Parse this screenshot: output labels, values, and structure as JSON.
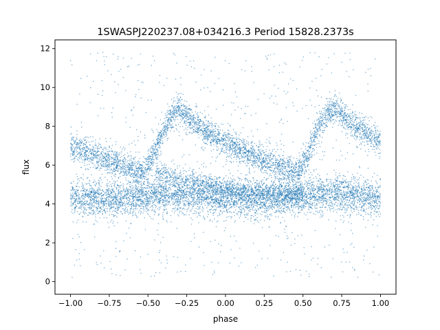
{
  "chart_data": {
    "type": "scatter",
    "title": "1SWASPJ220237.08+034216.3 Period 15828.2373s",
    "xlabel": "phase",
    "ylabel": "flux",
    "xlim": [
      -1.1,
      1.1
    ],
    "ylim": [
      -0.65,
      12.45
    ],
    "xticks": [
      "−1.00",
      "−0.75",
      "−0.50",
      "−0.25",
      "0.00",
      "0.25",
      "0.50",
      "0.75",
      "1.00"
    ],
    "xtick_values": [
      -1.0,
      -0.75,
      -0.5,
      -0.25,
      0.0,
      0.25,
      0.5,
      0.75,
      1.0
    ],
    "yticks": [
      "0",
      "2",
      "4",
      "6",
      "8",
      "10",
      "12"
    ],
    "ytick_values": [
      0,
      2,
      4,
      6,
      8,
      10,
      12
    ],
    "grid": false,
    "legend": "none",
    "marker_color": "#1f77b4",
    "x_range": [
      -1.0,
      1.0
    ],
    "series": [
      {
        "component": "baseline band",
        "x": [
          -1.0,
          -0.75,
          -0.5,
          -0.25,
          0.0,
          0.25,
          0.5,
          0.75,
          1.0
        ],
        "y": [
          4.3,
          4.2,
          4.4,
          4.5,
          4.3,
          4.2,
          4.4,
          4.5,
          4.3
        ],
        "spread": 0.45
      },
      {
        "component": "upper light curve",
        "x": [
          -1.0,
          -0.9,
          -0.8,
          -0.7,
          -0.6,
          -0.55,
          -0.5,
          -0.45,
          -0.4,
          -0.35,
          -0.3,
          -0.25,
          -0.2,
          -0.1,
          0.0,
          0.1,
          0.2,
          0.3,
          0.4,
          0.45,
          0.5,
          0.55,
          0.6,
          0.65,
          0.7,
          0.75,
          0.8,
          0.9,
          1.0
        ],
        "y": [
          7.0,
          6.7,
          6.4,
          6.1,
          5.8,
          5.6,
          5.9,
          6.8,
          7.8,
          8.5,
          8.9,
          8.6,
          8.1,
          7.6,
          7.2,
          6.8,
          6.4,
          6.1,
          5.8,
          5.6,
          6.0,
          6.9,
          7.9,
          8.6,
          8.9,
          8.6,
          8.2,
          7.7,
          7.2
        ],
        "spread": 0.35
      },
      {
        "component": "declining branch",
        "x": [
          -0.45,
          -0.25,
          0.0,
          0.25,
          0.5
        ],
        "y": [
          5.7,
          5.2,
          4.8,
          4.6,
          4.5
        ],
        "spread": 0.3
      }
    ]
  }
}
